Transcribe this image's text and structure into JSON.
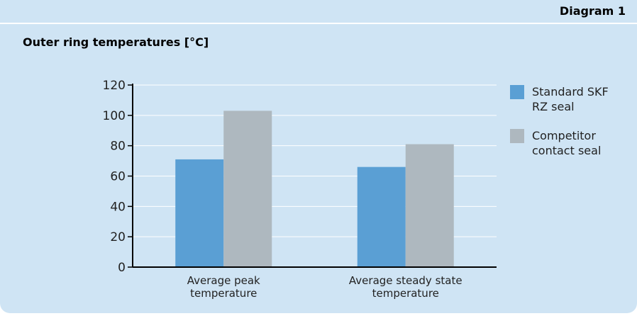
{
  "header": {
    "diagram_label": "Diagram 1"
  },
  "chart_data": {
    "type": "bar",
    "title": "Outer ring temperatures [°C]",
    "xlabel": "",
    "ylabel": "",
    "categories": [
      [
        "Average peak",
        "temperature"
      ],
      [
        "Average steady state",
        "temperature"
      ]
    ],
    "series": [
      {
        "name": [
          "Standard SKF",
          "RZ seal"
        ],
        "color": "#5a9fd4",
        "values": [
          71,
          66
        ]
      },
      {
        "name": [
          "Competitor",
          "contact seal"
        ],
        "color": "#aeb8bf",
        "values": [
          103,
          81
        ]
      }
    ],
    "ylim": [
      0,
      120
    ],
    "yticks": [
      "0",
      "20",
      "40",
      "60",
      "80",
      "100",
      "120"
    ],
    "grid": true,
    "legend": "right"
  }
}
